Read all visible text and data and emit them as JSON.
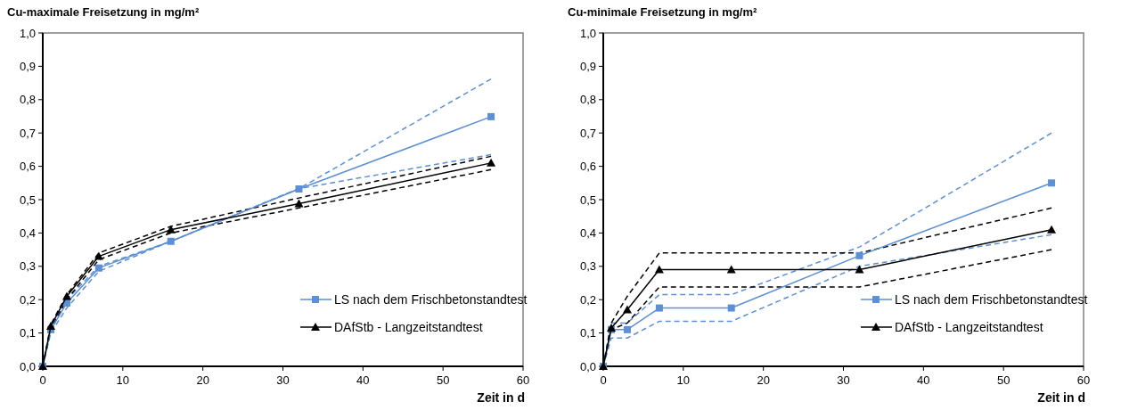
{
  "chart_data": [
    {
      "type": "line",
      "title": "Cu-maximale Freisetzung in mg/m²",
      "xlabel": "Zeit in d",
      "x": [
        0,
        1,
        3,
        7,
        16,
        32,
        56
      ],
      "xlim": [
        0,
        60
      ],
      "xticks": [
        0,
        10,
        20,
        30,
        40,
        50,
        60
      ],
      "ylim": [
        0,
        1
      ],
      "yticks": [
        {
          "value": 0,
          "label": "0,0"
        },
        {
          "value": 0.1,
          "label": "0,1"
        },
        {
          "value": 0.2,
          "label": "0,2"
        },
        {
          "value": 0.3,
          "label": "0,3"
        },
        {
          "value": 0.4,
          "label": "0,4"
        },
        {
          "value": 0.5,
          "label": "0,5"
        },
        {
          "value": 0.6,
          "label": "0,6"
        },
        {
          "value": 0.7,
          "label": "0,7"
        },
        {
          "value": 0.8,
          "label": "0,8"
        },
        {
          "value": 0.9,
          "label": "0,9"
        },
        {
          "value": 1,
          "label": "1,0"
        }
      ],
      "grid": false,
      "legend": "bottom right",
      "series": [
        {
          "color": "#5b8fd6",
          "line_style": "dashed",
          "marker": "none",
          "values": [
            0,
            0.12,
            0.2,
            0.3,
            0.375,
            0.533,
            0.862
          ]
        },
        {
          "color": "#5b8fd6",
          "line_style": "dashed",
          "marker": "none",
          "values": [
            0,
            0.1,
            0.175,
            0.285,
            0.375,
            0.533,
            0.635
          ]
        },
        {
          "color": "#000000",
          "line_style": "dashed",
          "marker": "none",
          "values": [
            0,
            0.125,
            0.215,
            0.34,
            0.42,
            0.505,
            0.63
          ]
        },
        {
          "color": "#000000",
          "line_style": "dashed",
          "marker": "none",
          "values": [
            0,
            0.11,
            0.2,
            0.32,
            0.4,
            0.475,
            0.59
          ]
        },
        {
          "name": "LS nach dem Frischbetonstandtest",
          "color": "#5b8fd6",
          "line_style": "solid",
          "marker": "square",
          "values": [
            0,
            0.11,
            0.19,
            0.295,
            0.375,
            0.532,
            0.749
          ]
        },
        {
          "name": "DAfStb - Langzeitstandtest",
          "color": "#000000",
          "line_style": "solid",
          "marker": "triangle",
          "values": [
            0,
            0.12,
            0.21,
            0.33,
            0.41,
            0.488,
            0.61
          ]
        }
      ]
    },
    {
      "type": "line",
      "title": "Cu-minimale Freisetzung in mg/m²",
      "xlabel": "Zeit in d",
      "x": [
        0,
        1,
        3,
        7,
        16,
        32,
        56
      ],
      "xlim": [
        0,
        60
      ],
      "xticks": [
        0,
        10,
        20,
        30,
        40,
        50,
        60
      ],
      "ylim": [
        0,
        1
      ],
      "yticks": [
        {
          "value": 0,
          "label": "0,0"
        },
        {
          "value": 0.1,
          "label": "0,1"
        },
        {
          "value": 0.2,
          "label": "0,2"
        },
        {
          "value": 0.3,
          "label": "0,3"
        },
        {
          "value": 0.4,
          "label": "0,4"
        },
        {
          "value": 0.5,
          "label": "0,5"
        },
        {
          "value": 0.6,
          "label": "0,6"
        },
        {
          "value": 0.7,
          "label": "0,7"
        },
        {
          "value": 0.8,
          "label": "0,8"
        },
        {
          "value": 0.9,
          "label": "0,9"
        },
        {
          "value": 1,
          "label": "1,0"
        }
      ],
      "grid": false,
      "legend": "bottom right",
      "series": [
        {
          "color": "#5b8fd6",
          "line_style": "dashed",
          "marker": "none",
          "values": [
            0,
            0.13,
            0.13,
            0.215,
            0.215,
            0.358,
            0.7
          ]
        },
        {
          "color": "#5b8fd6",
          "line_style": "dashed",
          "marker": "none",
          "values": [
            0,
            0.085,
            0.085,
            0.135,
            0.135,
            0.3,
            0.395
          ]
        },
        {
          "color": "#000000",
          "line_style": "dashed",
          "marker": "none",
          "values": [
            0,
            0.13,
            0.21,
            0.34,
            0.34,
            0.34,
            0.475
          ]
        },
        {
          "color": "#000000",
          "line_style": "dashed",
          "marker": "none",
          "values": [
            0,
            0.11,
            0.13,
            0.238,
            0.238,
            0.238,
            0.35
          ]
        },
        {
          "name": "LS nach dem Frischbetonstandtest",
          "color": "#5b8fd6",
          "line_style": "solid",
          "marker": "square",
          "values": [
            0,
            0.11,
            0.11,
            0.175,
            0.175,
            0.332,
            0.55
          ]
        },
        {
          "name": "DAfStb - Langzeitstandtest",
          "color": "#000000",
          "line_style": "solid",
          "marker": "triangle",
          "values": [
            0,
            0.115,
            0.17,
            0.29,
            0.29,
            0.29,
            0.41
          ]
        }
      ]
    }
  ]
}
